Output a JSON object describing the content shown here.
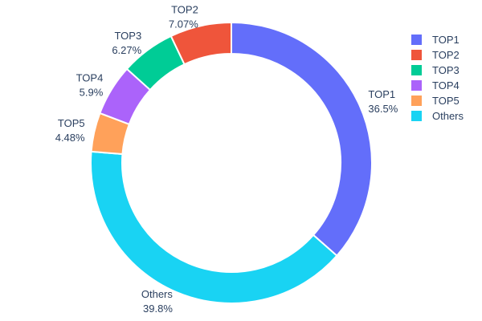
{
  "chart_data": {
    "type": "pie",
    "subtype": "donut",
    "title": "",
    "hole_ratio": 0.777,
    "start_angle_deg": 0,
    "direction_note": "clockwise from 12 o'clock",
    "clockwise_order": [
      "TOP1",
      "Others",
      "TOP5",
      "TOP4",
      "TOP3",
      "TOP2"
    ],
    "legend_position": "right",
    "text_color": "#2a3f5f",
    "background_color": "#ffffff",
    "separator_color": "#ffffff",
    "slices": [
      {
        "label": "TOP1",
        "value": 36.5,
        "pct_label": "36.5%",
        "color": "#636EFA"
      },
      {
        "label": "TOP2",
        "value": 7.07,
        "pct_label": "7.07%",
        "color": "#EF553B"
      },
      {
        "label": "TOP3",
        "value": 6.27,
        "pct_label": "6.27%",
        "color": "#00CC96"
      },
      {
        "label": "TOP4",
        "value": 5.9,
        "pct_label": "5.9%",
        "color": "#AB63FA"
      },
      {
        "label": "TOP5",
        "value": 4.48,
        "pct_label": "4.48%",
        "color": "#FFA15A"
      },
      {
        "label": "Others",
        "value": 39.8,
        "pct_label": "39.8%",
        "color": "#19D3F3"
      }
    ]
  }
}
